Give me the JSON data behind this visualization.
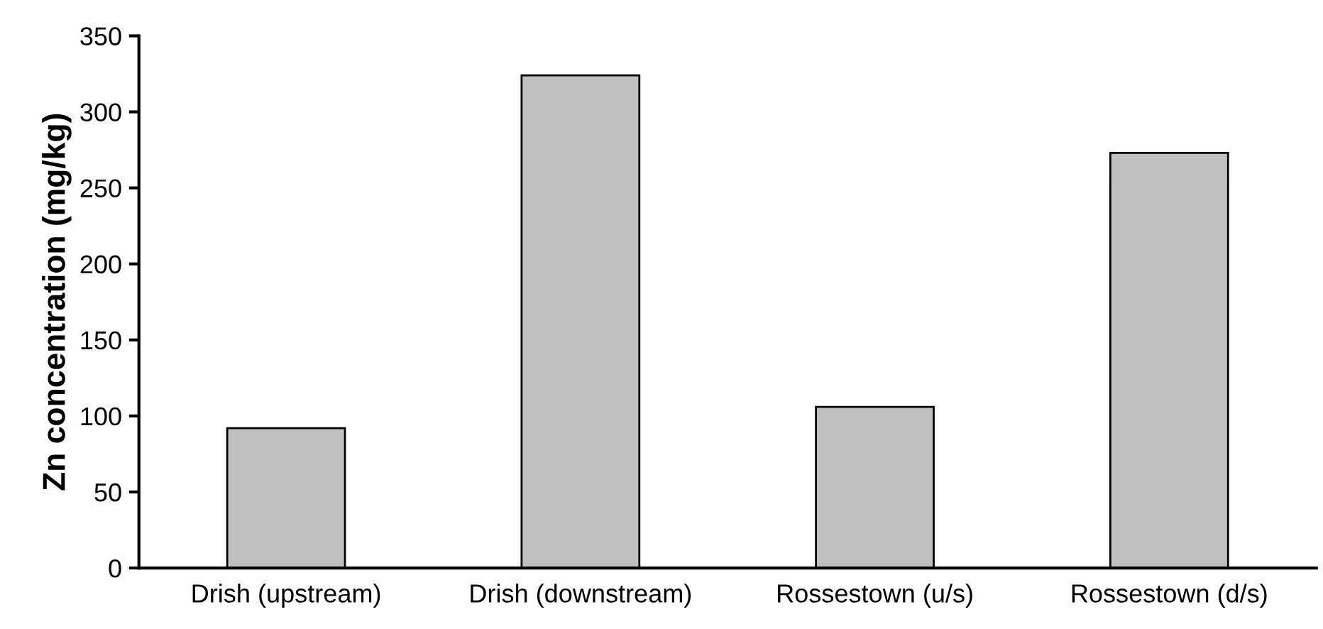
{
  "chart_data": {
    "type": "bar",
    "ylabel": "Zn concentration (mg/kg)",
    "categories": [
      "Drish (upstream)",
      "Drish (downstream)",
      "Rossestown (u/s)",
      "Rossestown (d/s)"
    ],
    "values": [
      92,
      324,
      106,
      273
    ],
    "color": "#c0c0c0",
    "ylim": [
      0,
      350
    ],
    "yticks": [
      0,
      50,
      100,
      150,
      200,
      250,
      300,
      350
    ],
    "grid": false,
    "legend": false
  }
}
